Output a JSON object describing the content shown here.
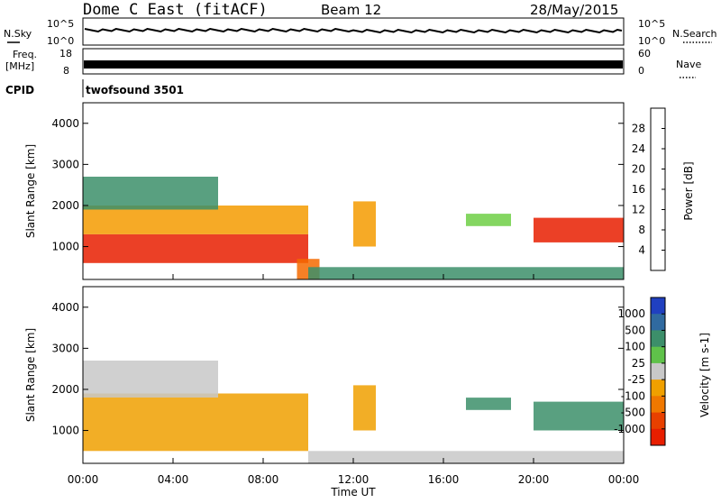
{
  "header": {
    "title": "Dome C East (fitACF)",
    "beam": "Beam 12",
    "date": "28/May/2015"
  },
  "top_strip": {
    "nsky_label": "N.Sky",
    "nsearch_label": "N.Search",
    "noise_ticks": [
      "10^5",
      "10^0"
    ],
    "freq_label": "Freq.",
    "freq_unit": "[MHz]",
    "freq_ticks": [
      "18",
      "8"
    ],
    "nave_label": "Nave",
    "nave_ticks": [
      "60",
      "0"
    ],
    "cpid_label": "CPID",
    "cpid_value": "twofsound 3501"
  },
  "x_axis": {
    "label": "Time UT",
    "ticks": [
      "00:00",
      "04:00",
      "08:00",
      "12:00",
      "16:00",
      "20:00",
      "00:00"
    ]
  },
  "y_axis": {
    "label": "Slant Range [km]",
    "ticks": [
      "1000",
      "2000",
      "3000",
      "4000"
    ]
  },
  "power_colorbar": {
    "label": "Power [dB]",
    "ticks": [
      "4",
      "8",
      "12",
      "16",
      "20",
      "24",
      "28"
    ],
    "colors": [
      "#1414ff",
      "#2e3f9e",
      "#3c8f6a",
      "#6fcf45",
      "#e6d400",
      "#f59b00",
      "#f56a00",
      "#e81e00"
    ]
  },
  "velocity_colorbar": {
    "label": "Velocity [m s-1]",
    "ticks": [
      "1000",
      "500",
      "100",
      "25",
      "-25",
      "-100",
      "-500",
      "-1000"
    ],
    "colors": [
      "#2040c0",
      "#306aa0",
      "#3c8f6a",
      "#5fc24a",
      "#c8c8c8",
      "#f0a000",
      "#f07800",
      "#e84000",
      "#e81e00"
    ]
  },
  "chart_data": [
    {
      "type": "heatmap",
      "name": "Power",
      "x_unit": "hours UT",
      "y_unit": "slant range km",
      "xlim": [
        0,
        24
      ],
      "ylim": [
        200,
        4500
      ],
      "regions": [
        {
          "x": [
            0,
            10
          ],
          "y": [
            600,
            1300
          ],
          "level": "high",
          "value_db": 28
        },
        {
          "x": [
            0,
            10
          ],
          "y": [
            1300,
            2000
          ],
          "level": "medium",
          "value_db": 18
        },
        {
          "x": [
            0,
            6
          ],
          "y": [
            1900,
            2700
          ],
          "level": "low",
          "value_db": 8
        },
        {
          "x": [
            9.5,
            10.5
          ],
          "y": [
            200,
            700
          ],
          "level": "high",
          "value_db": 24
        },
        {
          "x": [
            12,
            13
          ],
          "y": [
            1000,
            2100
          ],
          "level": "medium",
          "value_db": 18
        },
        {
          "x": [
            17,
            19
          ],
          "y": [
            1500,
            1800
          ],
          "level": "low",
          "value_db": 10
        },
        {
          "x": [
            20,
            24
          ],
          "y": [
            1100,
            1700
          ],
          "level": "high",
          "value_db": 26
        },
        {
          "x": [
            10,
            24
          ],
          "y": [
            200,
            500
          ],
          "level": "low",
          "value_db": 6
        }
      ]
    },
    {
      "type": "heatmap",
      "name": "Velocity",
      "x_unit": "hours UT",
      "y_unit": "slant range km",
      "xlim": [
        0,
        24
      ],
      "ylim": [
        200,
        4500
      ],
      "regions": [
        {
          "x": [
            0,
            10
          ],
          "y": [
            500,
            1900
          ],
          "level": "negative",
          "value_ms": -100
        },
        {
          "x": [
            0,
            6
          ],
          "y": [
            1800,
            2700
          ],
          "level": "near-zero",
          "value_ms": 0
        },
        {
          "x": [
            12,
            13
          ],
          "y": [
            1000,
            2100
          ],
          "level": "negative",
          "value_ms": -100
        },
        {
          "x": [
            17,
            19
          ],
          "y": [
            1500,
            1800
          ],
          "level": "positive",
          "value_ms": 100
        },
        {
          "x": [
            20,
            24
          ],
          "y": [
            1000,
            1700
          ],
          "level": "positive",
          "value_ms": 300
        },
        {
          "x": [
            10,
            24
          ],
          "y": [
            200,
            500
          ],
          "level": "near-zero",
          "value_ms": 0
        }
      ]
    }
  ]
}
